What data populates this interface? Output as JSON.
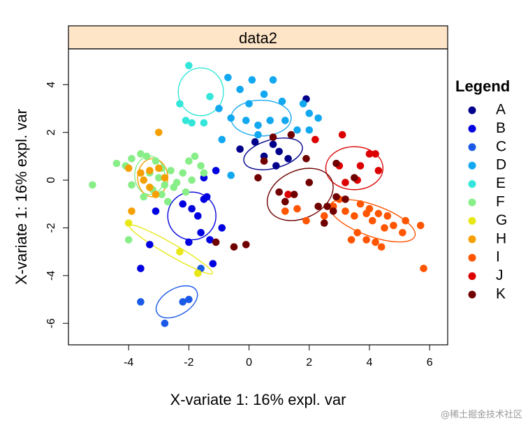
{
  "chart_data": {
    "type": "scatter",
    "panel_title": "data2",
    "xlabel": "X-variate 1: 16% expl. var",
    "ylabel": "X-variate 1: 16% expl. var",
    "xlim": [
      -6.0,
      6.6
    ],
    "ylim": [
      -6.9,
      5.5
    ],
    "xticks": [
      -4,
      -2,
      0,
      2,
      4,
      6
    ],
    "yticks": [
      -6,
      -4,
      -2,
      0,
      2,
      4
    ],
    "legend": {
      "title": "Legend",
      "position": "right"
    },
    "grid": false,
    "series": [
      {
        "name": "A",
        "color": "#00008B",
        "points": [
          [
            -0.3,
            1.3
          ],
          [
            0.5,
            1.0
          ],
          [
            0.8,
            1.5
          ],
          [
            1.0,
            1.2
          ],
          [
            1.3,
            0.9
          ],
          [
            1.9,
            3.4
          ],
          [
            0.9,
            0.6
          ],
          [
            0.2,
            1.6
          ]
        ],
        "ellipse": {
          "cx": 0.8,
          "cy": 1.1,
          "rx": 1.0,
          "ry": 0.6,
          "angle": 15
        }
      },
      {
        "name": "B",
        "color": "#0000E0",
        "points": [
          [
            -1.9,
            -1.2
          ],
          [
            -2.2,
            -1.0
          ],
          [
            -1.6,
            -2.2
          ],
          [
            -1.7,
            -1.5
          ],
          [
            -1.5,
            -0.8
          ],
          [
            -3.1,
            -1.3
          ],
          [
            -3.3,
            -2.7
          ],
          [
            -2.0,
            -2.6
          ],
          [
            -1.3,
            -2.5
          ],
          [
            -0.9,
            -2.0
          ],
          [
            -1.2,
            -3.5
          ],
          [
            -3.6,
            -3.7
          ],
          [
            -1.4,
            -0.7
          ],
          [
            -1.5,
            0.1
          ],
          [
            -1.1,
            0.4
          ]
        ],
        "ellipse": {
          "cx": -1.9,
          "cy": -1.5,
          "rx": 0.8,
          "ry": 1.0,
          "angle": 0
        }
      },
      {
        "name": "C",
        "color": "#1A5AE6",
        "points": [
          [
            -2.8,
            -6.0
          ],
          [
            -2.2,
            -5.1
          ],
          [
            -2.0,
            -5.0
          ],
          [
            -3.6,
            -5.1
          ],
          [
            -1.6,
            -3.7
          ]
        ],
        "ellipse": {
          "cx": -2.4,
          "cy": -5.1,
          "rx": 0.75,
          "ry": 0.55,
          "angle": 30
        }
      },
      {
        "name": "D",
        "color": "#12A8F0",
        "points": [
          [
            -0.7,
            4.3
          ],
          [
            -0.3,
            3.8
          ],
          [
            0.1,
            4.2
          ],
          [
            0.8,
            4.2
          ],
          [
            0.5,
            3.6
          ],
          [
            1.1,
            3.3
          ],
          [
            1.8,
            3.2
          ],
          [
            0.0,
            3.2
          ],
          [
            -0.1,
            2.5
          ],
          [
            0.3,
            2.3
          ],
          [
            0.7,
            2.5
          ],
          [
            1.2,
            2.5
          ],
          [
            1.6,
            2.1
          ],
          [
            2.0,
            2.8
          ],
          [
            2.3,
            2.6
          ],
          [
            -1.0,
            3.0
          ],
          [
            -0.6,
            2.6
          ],
          [
            0.3,
            1.9
          ],
          [
            -0.9,
            1.7
          ],
          [
            -0.6,
            0.2
          ],
          [
            2.0,
            2.1
          ]
        ],
        "ellipse": {
          "cx": 0.4,
          "cy": 2.6,
          "rx": 1.0,
          "ry": 0.75,
          "angle": 0
        }
      },
      {
        "name": "E",
        "color": "#33E6D9",
        "points": [
          [
            -2.0,
            4.8
          ],
          [
            -2.3,
            3.2
          ],
          [
            -1.9,
            2.4
          ],
          [
            -2.1,
            2.5
          ],
          [
            -1.5,
            2.4
          ],
          [
            -1.3,
            3.5
          ]
        ],
        "ellipse": {
          "cx": -1.6,
          "cy": 3.7,
          "rx": 0.75,
          "ry": 1.0,
          "angle": 0
        }
      },
      {
        "name": "F",
        "color": "#88EE88",
        "points": [
          [
            -5.2,
            -0.2
          ],
          [
            -4.4,
            0.7
          ],
          [
            -4.1,
            0.6
          ],
          [
            -3.9,
            0.9
          ],
          [
            -3.6,
            1.1
          ],
          [
            -3.4,
            1.0
          ],
          [
            -3.1,
            0.8
          ],
          [
            -2.9,
            0.5
          ],
          [
            -2.6,
            0.4
          ],
          [
            -2.4,
            -0.1
          ],
          [
            -2.2,
            0.3
          ],
          [
            -2.0,
            0.8
          ],
          [
            -1.8,
            1.0
          ],
          [
            -1.6,
            0.6
          ],
          [
            -3.2,
            -0.4
          ],
          [
            -2.9,
            -0.6
          ],
          [
            -2.7,
            -0.9
          ],
          [
            -2.5,
            -0.3
          ],
          [
            -3.5,
            -0.7
          ],
          [
            -3.9,
            -0.2
          ],
          [
            -2.1,
            -0.5
          ],
          [
            -1.9,
            0.0
          ],
          [
            -1.5,
            0.3
          ],
          [
            -4.0,
            -2.5
          ],
          [
            -3.3,
            0.3
          ],
          [
            -2.8,
            -0.2
          ],
          [
            -3.0,
            0.1
          ]
        ],
        "ellipse": {
          "cx": -3.3,
          "cy": 0.2,
          "rx": 0.5,
          "ry": 0.8,
          "angle": 0
        }
      },
      {
        "name": "G",
        "color": "#E8E817",
        "points": [
          [
            -4.0,
            -1.8
          ],
          [
            -1.7,
            -3.9
          ],
          [
            -2.3,
            -3.0
          ]
        ],
        "ellipse": {
          "cx": -2.6,
          "cy": -2.9,
          "rx": 1.6,
          "ry": 0.25,
          "angle": -30
        }
      },
      {
        "name": "H",
        "color": "#F5A000",
        "points": [
          [
            -3.0,
            2.0
          ],
          [
            -3.6,
            0.3
          ],
          [
            -3.3,
            0.4
          ],
          [
            -3.0,
            0.5
          ],
          [
            -3.3,
            -0.3
          ],
          [
            -3.1,
            -0.6
          ],
          [
            -3.9,
            -1.3
          ],
          [
            -4.0,
            0.5
          ],
          [
            -3.5,
            0.0
          ],
          [
            -2.8,
            0.1
          ]
        ],
        "ellipse": {
          "cx": -3.2,
          "cy": 0.1,
          "rx": 0.5,
          "ry": 0.8,
          "angle": 0
        }
      },
      {
        "name": "I",
        "color": "#FF5500",
        "points": [
          [
            3.5,
            -1.5
          ],
          [
            3.9,
            -1.4
          ],
          [
            4.1,
            -1.7
          ],
          [
            4.3,
            -1.4
          ],
          [
            4.6,
            -1.5
          ],
          [
            4.8,
            -1.9
          ],
          [
            5.1,
            -2.2
          ],
          [
            5.2,
            -1.7
          ],
          [
            3.6,
            -2.2
          ],
          [
            3.9,
            -2.5
          ],
          [
            4.2,
            -2.6
          ],
          [
            4.4,
            -2.8
          ],
          [
            3.4,
            -2.5
          ],
          [
            5.7,
            -1.9
          ],
          [
            5.8,
            -3.7
          ],
          [
            4.0,
            -1.2
          ],
          [
            3.2,
            -1.3
          ],
          [
            3.7,
            -1.0
          ],
          [
            1.9,
            -1.7
          ],
          [
            2.5,
            -1.5
          ],
          [
            3.0,
            -0.8
          ],
          [
            2.8,
            -1.1
          ],
          [
            1.6,
            -1.2
          ],
          [
            1.2,
            -1.3
          ],
          [
            4.5,
            -2.0
          ]
        ],
        "ellipse": {
          "cx": 4.1,
          "cy": -1.7,
          "rx": 1.5,
          "ry": 0.65,
          "angle": -20
        }
      },
      {
        "name": "J",
        "color": "#DD0000",
        "points": [
          [
            3.1,
            1.9
          ],
          [
            4.0,
            1.1
          ],
          [
            4.2,
            1.1
          ],
          [
            4.3,
            0.4
          ],
          [
            3.7,
            0.6
          ],
          [
            3.0,
            0.6
          ],
          [
            3.6,
            0.0
          ],
          [
            2.2,
            1.7
          ],
          [
            1.3,
            -0.6
          ],
          [
            3.2,
            -0.1
          ]
        ],
        "ellipse": {
          "cx": 3.5,
          "cy": 0.5,
          "rx": 0.95,
          "ry": 0.9,
          "angle": 0
        }
      },
      {
        "name": "K",
        "color": "#700000",
        "points": [
          [
            1.0,
            -0.5
          ],
          [
            1.2,
            -0.9
          ],
          [
            1.5,
            -0.6
          ],
          [
            1.9,
            0.9
          ],
          [
            1.4,
            1.9
          ],
          [
            0.8,
            1.8
          ],
          [
            0.5,
            0.8
          ],
          [
            0.3,
            0.1
          ],
          [
            2.0,
            -0.1
          ],
          [
            2.8,
            -1.3
          ],
          [
            2.6,
            -1.1
          ],
          [
            2.3,
            -1.1
          ],
          [
            2.5,
            -1.8
          ],
          [
            3.2,
            -0.8
          ],
          [
            3.5,
            0.1
          ],
          [
            2.9,
            0.7
          ],
          [
            -0.5,
            -2.8
          ],
          [
            -1.1,
            -2.6
          ],
          [
            2.9,
            -0.7
          ],
          [
            -0.1,
            -2.7
          ]
        ],
        "ellipse": {
          "cx": 1.7,
          "cy": -0.6,
          "rx": 1.15,
          "ry": 1.0,
          "angle": 25
        }
      }
    ]
  },
  "watermark": "@稀土掘金技术社区"
}
